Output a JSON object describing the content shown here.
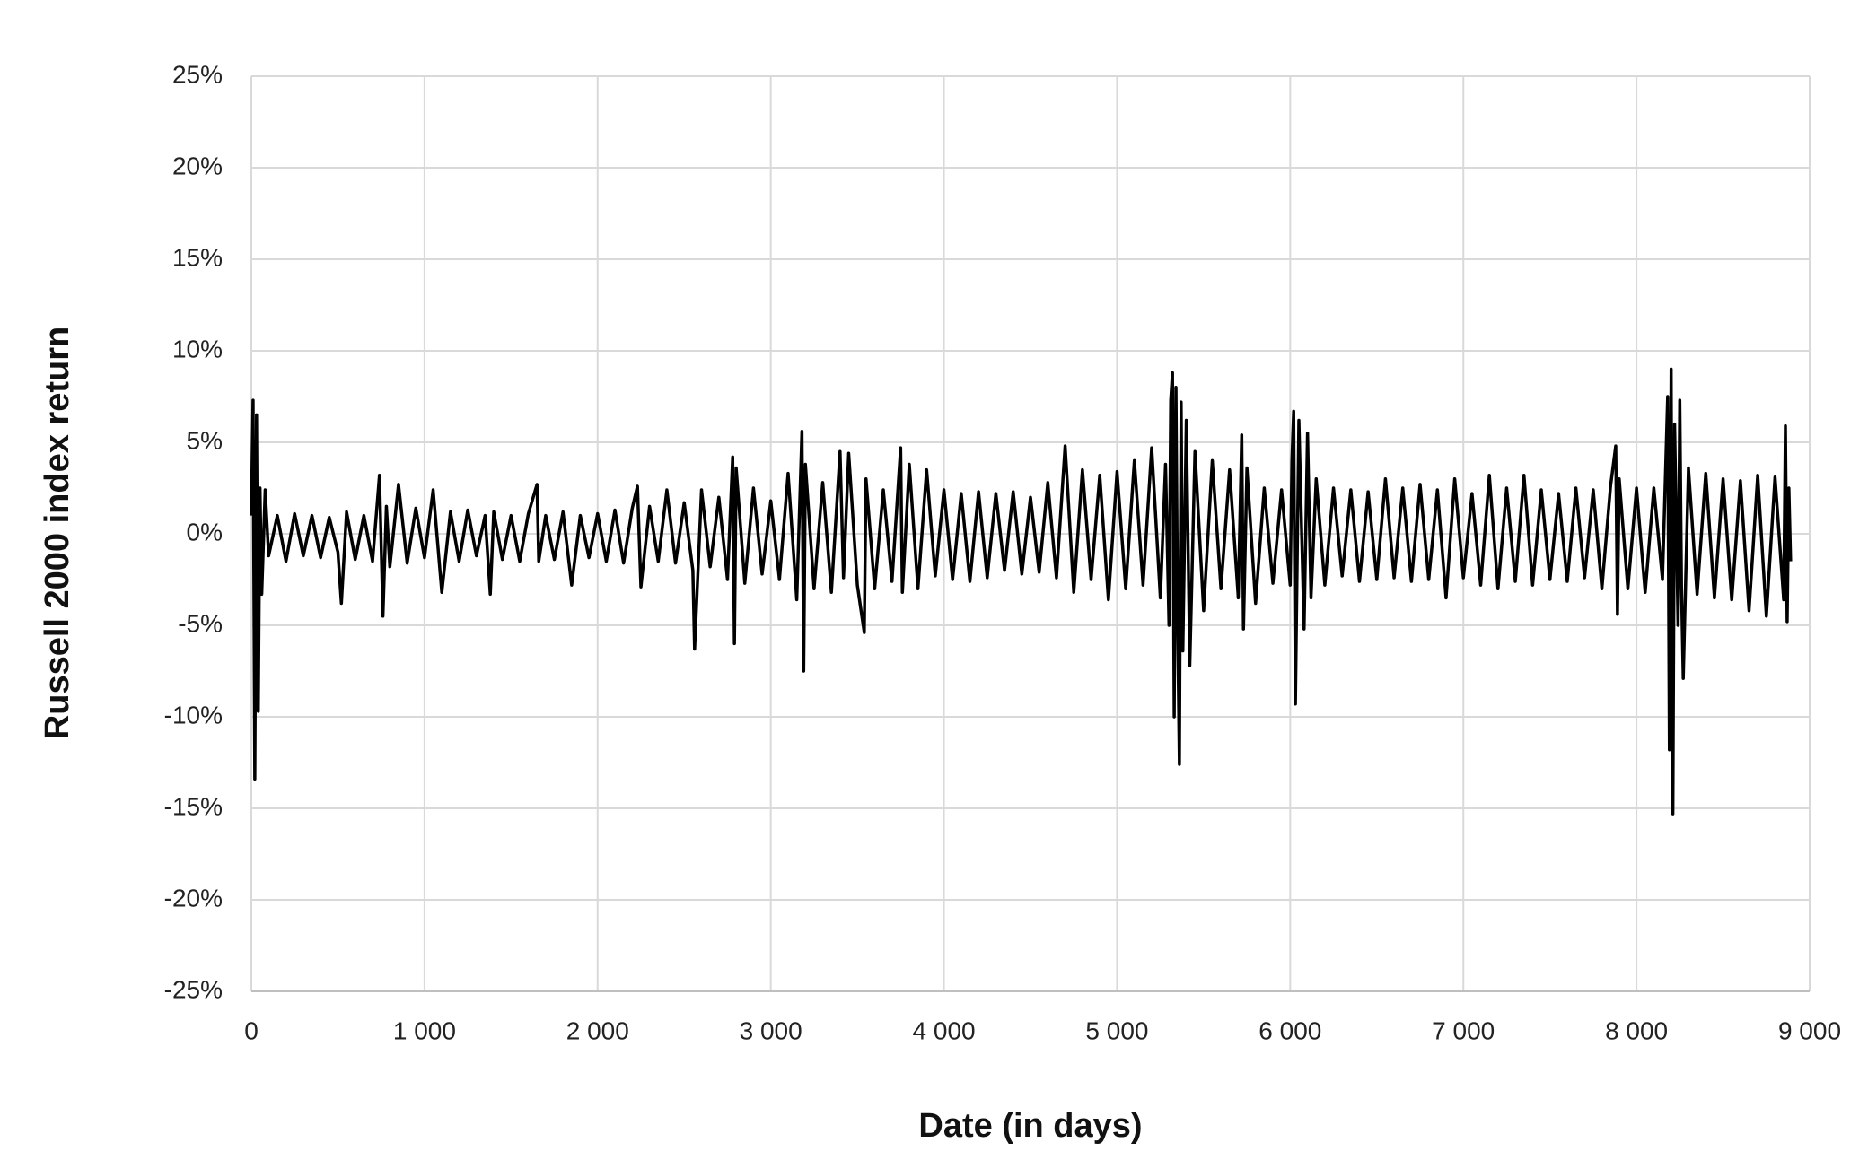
{
  "chart_data": {
    "type": "line",
    "x_label": "Date (in days)",
    "y_label": "Russell 2000 index return",
    "color": "#000000",
    "grid": true,
    "xlim": [
      0,
      9000
    ],
    "ylim": [
      -25,
      25
    ],
    "xticks": [
      0,
      {
        "value": 1000,
        "label": "1 000"
      },
      {
        "value": 2000,
        "label": "2 000"
      },
      {
        "value": 3000,
        "label": "3 000"
      },
      {
        "value": 4000,
        "label": "4 000"
      },
      {
        "value": 5000,
        "label": "5 000"
      },
      {
        "value": 6000,
        "label": "6 000"
      },
      {
        "value": 7000,
        "label": "7 000"
      },
      {
        "value": 8000,
        "label": "8 000"
      },
      {
        "value": 9000,
        "label": "9 000"
      }
    ],
    "yticks": [
      {
        "value": -25,
        "label": "-25%"
      },
      {
        "value": -20,
        "label": "-20%"
      },
      {
        "value": -15,
        "label": "-15%"
      },
      {
        "value": -10,
        "label": "-10%"
      },
      {
        "value": -5,
        "label": "-5%"
      },
      {
        "value": 0,
        "label": "0%"
      },
      {
        "value": 5,
        "label": "5%"
      },
      {
        "value": 10,
        "label": "10%"
      },
      {
        "value": 15,
        "label": "15%"
      },
      {
        "value": 20,
        "label": "20%"
      },
      {
        "value": 25,
        "label": "25%"
      }
    ],
    "x": [
      0,
      10,
      20,
      30,
      40,
      50,
      60,
      80,
      100,
      150,
      200,
      250,
      300,
      350,
      400,
      450,
      500,
      520,
      550,
      600,
      650,
      700,
      740,
      760,
      780,
      800,
      850,
      900,
      950,
      1000,
      1050,
      1100,
      1150,
      1200,
      1250,
      1300,
      1350,
      1380,
      1400,
      1450,
      1500,
      1550,
      1600,
      1650,
      1660,
      1700,
      1750,
      1800,
      1850,
      1900,
      1950,
      2000,
      2050,
      2100,
      2150,
      2200,
      2230,
      2250,
      2300,
      2350,
      2400,
      2450,
      2500,
      2550,
      2560,
      2600,
      2650,
      2700,
      2750,
      2780,
      2790,
      2800,
      2850,
      2900,
      2950,
      3000,
      3050,
      3100,
      3150,
      3180,
      3190,
      3200,
      3250,
      3300,
      3350,
      3400,
      3420,
      3450,
      3500,
      3540,
      3550,
      3600,
      3650,
      3700,
      3750,
      3760,
      3800,
      3850,
      3900,
      3950,
      4000,
      4050,
      4100,
      4150,
      4200,
      4250,
      4300,
      4350,
      4400,
      4450,
      4500,
      4550,
      4600,
      4650,
      4700,
      4750,
      4800,
      4850,
      4900,
      4950,
      5000,
      5050,
      5100,
      5150,
      5200,
      5250,
      5280,
      5300,
      5310,
      5320,
      5330,
      5340,
      5350,
      5360,
      5370,
      5380,
      5400,
      5420,
      5450,
      5500,
      5550,
      5600,
      5650,
      5700,
      5720,
      5730,
      5750,
      5800,
      5850,
      5900,
      5950,
      6000,
      6010,
      6020,
      6030,
      6050,
      6080,
      6100,
      6120,
      6150,
      6200,
      6250,
      6300,
      6350,
      6400,
      6450,
      6500,
      6550,
      6600,
      6650,
      6700,
      6750,
      6800,
      6850,
      6900,
      6950,
      7000,
      7050,
      7100,
      7150,
      7200,
      7250,
      7300,
      7350,
      7400,
      7450,
      7500,
      7550,
      7600,
      7650,
      7700,
      7750,
      7800,
      7850,
      7880,
      7890,
      7900,
      7950,
      8000,
      8050,
      8100,
      8150,
      8180,
      8190,
      8200,
      8210,
      8220,
      8240,
      8250,
      8260,
      8270,
      8300,
      8350,
      8400,
      8450,
      8500,
      8550,
      8600,
      8650,
      8700,
      8750,
      8800,
      8850,
      8860,
      8870,
      8880,
      8890
    ],
    "values": [
      1,
      7.3,
      -13.4,
      6.5,
      -9.7,
      2.5,
      -3.3,
      2.4,
      -1.2,
      1,
      -1.5,
      1.1,
      -1.2,
      1,
      -1.3,
      0.9,
      -1,
      -3.8,
      1.2,
      -1.4,
      1,
      -1.5,
      3.2,
      -4.5,
      1.5,
      -1.8,
      2.7,
      -1.6,
      1.4,
      -1.3,
      2.4,
      -3.2,
      1.2,
      -1.5,
      1.3,
      -1.2,
      1,
      -3.3,
      1.2,
      -1.4,
      1,
      -1.5,
      1.1,
      2.7,
      -1.5,
      1,
      -1.4,
      1.2,
      -2.8,
      1,
      -1.3,
      1.1,
      -1.5,
      1.3,
      -1.6,
      1.4,
      2.6,
      -2.9,
      1.5,
      -1.5,
      2.4,
      -1.6,
      1.7,
      -2,
      -6.3,
      2.4,
      -1.8,
      2,
      -2.5,
      4.2,
      -6,
      3.6,
      -2.7,
      2.5,
      -2.2,
      1.8,
      -2.5,
      3.3,
      -3.6,
      5.6,
      -7.5,
      3.8,
      -3,
      2.8,
      -3.2,
      4.5,
      -2.4,
      4.4,
      -2.8,
      -5.4,
      3,
      -3,
      2.4,
      -2.6,
      4.7,
      -3.2,
      3.8,
      -3,
      3.5,
      -2.3,
      2.4,
      -2.5,
      2.2,
      -2.6,
      2.3,
      -2.4,
      2.2,
      -2,
      2.3,
      -2.2,
      2,
      -2.1,
      2.8,
      -2.4,
      4.8,
      -3.2,
      3.5,
      -2.5,
      3.2,
      -3.6,
      3.4,
      -3,
      4,
      -2.8,
      4.7,
      -3.5,
      3.8,
      -5,
      7.3,
      8.8,
      -10,
      8,
      -5,
      -12.6,
      7.2,
      -6.4,
      6.2,
      -7.2,
      4.5,
      -4.2,
      4,
      -3,
      3.5,
      -3.5,
      5.4,
      -5.2,
      3.6,
      -3.8,
      2.5,
      -2.7,
      2.4,
      -2.8,
      4,
      6.7,
      -9.3,
      6.2,
      -5.2,
      5.5,
      -3.5,
      3,
      -2.8,
      2.5,
      -2.3,
      2.4,
      -2.6,
      2.3,
      -2.5,
      3,
      -2.4,
      2.5,
      -2.6,
      2.7,
      -2.5,
      2.4,
      -3.5,
      3,
      -2.4,
      2.2,
      -2.8,
      3.2,
      -3,
      2.5,
      -2.6,
      3.2,
      -2.8,
      2.4,
      -2.5,
      2.2,
      -2.6,
      2.5,
      -2.4,
      2.4,
      -3,
      2.6,
      4.8,
      -4.4,
      3,
      -3,
      2.5,
      -3.2,
      2.5,
      -2.5,
      7.5,
      -11.8,
      9,
      -15.3,
      6,
      -5,
      7.3,
      -3,
      -7.9,
      3.6,
      -3.3,
      3.3,
      -3.5,
      3,
      -3.6,
      2.9,
      -4.2,
      3.2,
      -4.5,
      3.1,
      -3.6,
      5.9,
      -4.8,
      2.5,
      -1.5
    ]
  }
}
